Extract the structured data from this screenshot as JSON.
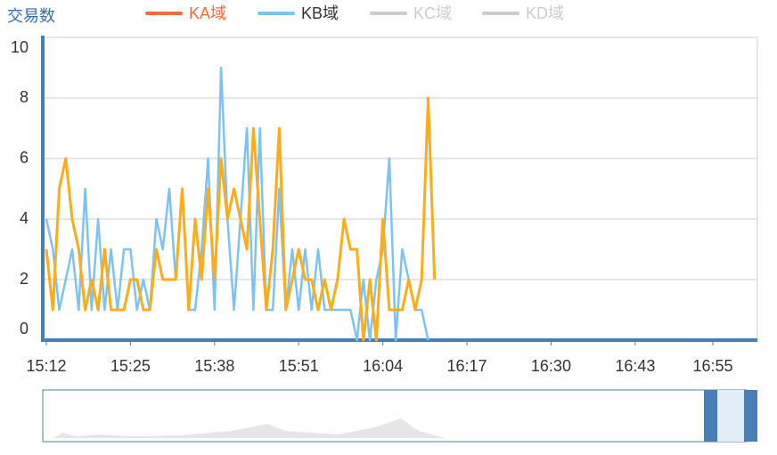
{
  "chart_data": {
    "type": "line",
    "y_axis_label": "交易数",
    "legend": [
      {
        "name": "KA域",
        "color": "#f26c3d",
        "text_color": "#f26c3d",
        "selected": true
      },
      {
        "name": "KB域",
        "color": "#7cc3f5",
        "text_color": "#333333",
        "selected": true
      },
      {
        "name": "KC域",
        "color": "#cccccc",
        "text_color": "#cccccc",
        "selected": false
      },
      {
        "name": "KD域",
        "color": "#cccccc",
        "text_color": "#cccccc",
        "selected": false
      }
    ],
    "categories": [
      "15:12",
      "15:13",
      "15:14",
      "15:15",
      "15:16",
      "15:17",
      "15:18",
      "15:19",
      "15:20",
      "15:21",
      "15:22",
      "15:23",
      "15:24",
      "15:25",
      "15:26",
      "15:27",
      "15:28",
      "15:29",
      "15:30",
      "15:31",
      "15:32",
      "15:33",
      "15:34",
      "15:35",
      "15:36",
      "15:37",
      "15:38",
      "15:39",
      "15:40",
      "15:41",
      "15:42",
      "15:43",
      "15:44",
      "15:45",
      "15:46",
      "15:47",
      "15:48",
      "15:49",
      "15:50",
      "15:51",
      "15:52",
      "15:53",
      "15:54",
      "15:55",
      "15:56",
      "15:57",
      "15:58",
      "15:59",
      "16:00",
      "16:01",
      "16:02",
      "16:03",
      "16:04",
      "16:05",
      "16:06",
      "16:07",
      "16:08",
      "16:09",
      "16:10",
      "16:11",
      "16:12",
      "16:13",
      "16:14",
      "16:15",
      "16:16",
      "16:17",
      "16:18",
      "16:19",
      "16:20",
      "16:21",
      "16:22",
      "16:23",
      "16:24",
      "16:25",
      "16:26",
      "16:27",
      "16:28",
      "16:29",
      "16:30",
      "16:31",
      "16:32",
      "16:33",
      "16:34",
      "16:35",
      "16:36",
      "16:37",
      "16:38",
      "16:39",
      "16:40",
      "16:41",
      "16:42",
      "16:43",
      "16:44",
      "16:45",
      "16:46",
      "16:47",
      "16:48",
      "16:49",
      "16:50",
      "16:51",
      "16:52",
      "16:53",
      "16:54",
      "16:55",
      "16:56",
      "16:57",
      "16:58",
      "16:59",
      "17:00",
      "17:01",
      "17:02"
    ],
    "xticks": [
      "15:12",
      "15:25",
      "15:38",
      "15:51",
      "16:04",
      "16:17",
      "16:30",
      "16:43",
      "16:55"
    ],
    "series": [
      {
        "name": "KB域",
        "color": "#7cc3f5",
        "values": [
          4,
          3,
          1,
          2,
          3,
          1,
          5,
          1,
          4,
          1,
          3,
          1,
          3,
          3,
          1,
          2,
          1,
          4,
          3,
          5,
          2,
          5,
          1,
          1,
          3,
          6,
          1,
          9,
          4,
          1,
          4,
          7,
          1,
          7,
          1,
          1,
          5,
          1,
          3,
          1,
          3,
          1,
          3,
          1,
          1,
          1,
          1,
          1,
          0,
          2,
          0,
          2,
          3,
          6,
          0,
          3,
          2,
          1,
          1,
          0,
          null,
          null,
          null,
          null,
          null,
          null,
          null,
          null,
          null,
          null,
          null,
          null,
          null,
          null,
          null,
          null,
          null,
          null,
          null,
          null,
          null,
          null,
          null,
          null,
          null,
          null,
          null,
          null,
          null,
          null,
          null,
          null,
          null,
          null,
          null,
          null,
          null,
          null,
          null,
          null,
          null,
          null,
          null,
          null,
          null,
          null,
          null,
          null,
          null,
          null,
          null
        ]
      },
      {
        "name": "KA域",
        "color": "#ffab1a",
        "values": [
          3,
          1,
          5,
          6,
          4,
          3,
          1,
          2,
          1,
          3,
          1,
          1,
          1,
          2,
          2,
          1,
          1,
          3,
          2,
          2,
          2,
          5,
          1,
          4,
          2,
          5,
          2,
          6,
          4,
          5,
          4,
          3,
          7,
          4,
          1,
          3,
          7,
          1,
          2,
          3,
          2,
          2,
          1,
          2,
          1,
          2,
          4,
          3,
          3,
          0,
          2,
          0,
          4,
          1,
          1,
          1,
          2,
          1,
          2,
          8,
          2,
          null,
          null,
          null,
          null,
          null,
          null,
          null,
          null,
          null,
          null,
          null,
          null,
          null,
          null,
          null,
          null,
          null,
          null,
          null,
          null,
          null,
          null,
          null,
          null,
          null,
          null,
          null,
          null,
          null,
          null,
          null,
          null,
          null,
          null,
          null,
          null,
          null,
          null,
          null,
          null,
          null,
          null,
          null,
          null,
          null,
          null,
          null,
          null,
          null,
          null
        ]
      }
    ],
    "ylim": [
      0,
      10
    ],
    "yticks": [
      0,
      2,
      4,
      6,
      8,
      10
    ],
    "grid": true
  }
}
